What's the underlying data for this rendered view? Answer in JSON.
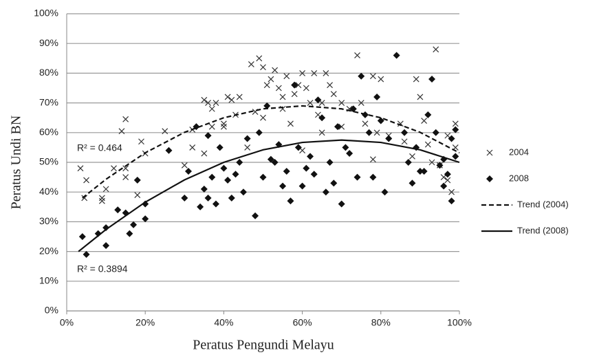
{
  "chart_data": {
    "type": "scatter",
    "xlabel": "Peratus Pengundi Melayu",
    "ylabel": "Peratus Undi BN",
    "xlim": [
      0,
      100
    ],
    "ylim": [
      0,
      100
    ],
    "xticks": [
      {
        "value": 0,
        "label": "0%"
      },
      {
        "value": 20,
        "label": "20%"
      },
      {
        "value": 40,
        "label": "40%"
      },
      {
        "value": 60,
        "label": "60%"
      },
      {
        "value": 80,
        "label": "80%"
      },
      {
        "value": 100,
        "label": "100%"
      }
    ],
    "yticks": [
      {
        "value": 0,
        "label": "0%"
      },
      {
        "value": 10,
        "label": "10%"
      },
      {
        "value": 20,
        "label": "20%"
      },
      {
        "value": 30,
        "label": "30%"
      },
      {
        "value": 40,
        "label": "40%"
      },
      {
        "value": 50,
        "label": "50%"
      },
      {
        "value": 60,
        "label": "60%"
      },
      {
        "value": 70,
        "label": "70%"
      },
      {
        "value": 80,
        "label": "80%"
      },
      {
        "value": 90,
        "label": "90%"
      },
      {
        "value": 100,
        "label": "100%"
      }
    ],
    "grid": true,
    "legend": "right",
    "annotations": [
      "R² = 0.464",
      "R² = 0.3894"
    ],
    "series": [
      {
        "name": "2004",
        "type": "scatter",
        "marker": "x",
        "color": "#333333",
        "x": [
          3.5,
          5,
          4.5,
          9,
          9,
          10,
          12,
          14,
          15,
          15,
          15,
          18,
          19,
          20,
          25,
          30,
          32,
          32,
          35,
          36,
          37,
          38,
          35,
          37,
          40,
          41,
          42,
          43,
          44,
          40,
          46,
          47,
          49,
          50,
          51,
          52,
          53,
          54,
          55,
          56,
          58,
          59,
          60,
          61,
          62,
          63,
          64,
          65,
          66,
          67,
          68,
          70,
          72,
          74,
          75,
          76,
          78,
          79,
          80,
          82,
          85,
          88,
          89,
          90,
          91,
          92,
          94,
          95,
          96,
          97,
          98,
          99,
          99,
          97,
          60,
          55,
          50,
          48,
          70,
          78,
          86,
          93,
          65,
          57
        ],
        "values": [
          48,
          44,
          38,
          38,
          37,
          41,
          48,
          60.5,
          64.5,
          48,
          45,
          39,
          57,
          53,
          60.5,
          49,
          61,
          55,
          71,
          70,
          68,
          70,
          53,
          62,
          62,
          72,
          71,
          66,
          72,
          63,
          55,
          83,
          85,
          82,
          76,
          78,
          81,
          75,
          72,
          79,
          73,
          76,
          80,
          75,
          70,
          80,
          66,
          70,
          80,
          76,
          73,
          70,
          68,
          86,
          70,
          63,
          79,
          60,
          78,
          59,
          63,
          52,
          78,
          72,
          64,
          56,
          88,
          49,
          45,
          44,
          40,
          63,
          55,
          59,
          54,
          68,
          65,
          67,
          62,
          51,
          57,
          50,
          60,
          63
        ]
      },
      {
        "name": "2008",
        "type": "scatter",
        "marker": "diamond",
        "color": "#111111",
        "x": [
          4,
          5,
          8,
          10,
          10,
          13,
          15,
          16,
          17,
          18,
          20,
          20,
          26,
          30,
          31,
          33,
          34,
          35,
          36,
          36,
          37,
          38,
          39,
          40,
          41,
          42,
          43,
          44,
          45,
          46,
          48,
          49,
          50,
          51,
          52,
          53,
          54,
          55,
          56,
          57,
          58,
          59,
          60,
          61,
          62,
          63,
          64,
          65,
          66,
          67,
          68,
          69,
          70,
          71,
          72,
          73,
          74,
          75,
          76,
          77,
          78,
          79,
          80,
          81,
          82,
          84,
          86,
          87,
          88,
          89,
          90,
          92,
          93,
          94,
          95,
          96,
          97,
          98,
          98,
          99,
          99,
          96,
          91
        ],
        "values": [
          25,
          19,
          26,
          22,
          28,
          34,
          33,
          26,
          29,
          44,
          31,
          36,
          54,
          38,
          47,
          62,
          35,
          41,
          59,
          38,
          45,
          36,
          55,
          48,
          44,
          38,
          46,
          50,
          40,
          58,
          32,
          60,
          45,
          69,
          51,
          50,
          56,
          42,
          47,
          37,
          76,
          55,
          42,
          48,
          52,
          46,
          71,
          65,
          40,
          50,
          43,
          62,
          36,
          55,
          53,
          68,
          45,
          79,
          66,
          60,
          45,
          72,
          64,
          40,
          58,
          86,
          60,
          50,
          43,
          55,
          47,
          66,
          78,
          60,
          49,
          51,
          46,
          37,
          58,
          52,
          61,
          42,
          47
        ]
      },
      {
        "name": "Trend (2004)",
        "type": "line",
        "dash": "dashed",
        "color": "#111111",
        "x": [
          4,
          10,
          20,
          30,
          40,
          50,
          60,
          70,
          80,
          90,
          100
        ],
        "values": [
          38.0,
          44.3,
          53.2,
          60.1,
          65.0,
          68.0,
          69,
          68.0,
          65.0,
          60.1,
          53.2
        ]
      },
      {
        "name": "Trend (2008)",
        "type": "line",
        "dash": "solid",
        "color": "#111111",
        "x": [
          3,
          10,
          20,
          30,
          40,
          50,
          60,
          70,
          80,
          90,
          100
        ],
        "values": [
          20.0,
          27.4,
          36.6,
          44.1,
          50.0,
          54.2,
          56.7,
          57.5,
          56.7,
          54.2,
          50.0
        ]
      }
    ]
  }
}
